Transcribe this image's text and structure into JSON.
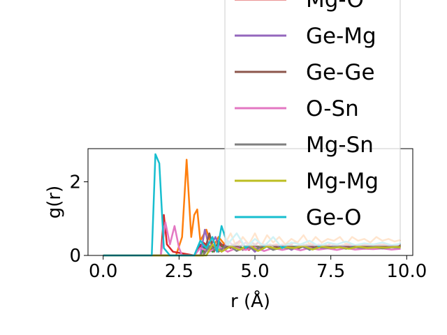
{
  "chart_data": {
    "type": "line",
    "xlabel": "r (Å)",
    "ylabel": "g(r)",
    "xlim": [
      -0.5,
      10.2
    ],
    "ylim": [
      0,
      2.9
    ],
    "xticks": [
      0.0,
      2.5,
      5.0,
      7.5,
      10.0
    ],
    "xtick_labels": [
      "0.0",
      "2.5",
      "5.0",
      "7.5",
      "10.0"
    ],
    "yticks": [
      0,
      2
    ],
    "ytick_labels": [
      "0",
      "2"
    ],
    "grid": false,
    "legend_placement": "upper right, extending above the axes",
    "series": [
      {
        "name": "",
        "color": "#1f77b4",
        "x": [
          0,
          1.8,
          2.0,
          3.0,
          3.2,
          3.4,
          3.6,
          3.8,
          4.0,
          4.2,
          4.4,
          4.6,
          4.8,
          5.0,
          5.2,
          5.4,
          5.6,
          5.8,
          6.0,
          6.2,
          6.4,
          6.6,
          6.8,
          7.0,
          7.2,
          7.4,
          7.6,
          7.8,
          8.0,
          8.2,
          8.4,
          8.6,
          8.8,
          9.0,
          9.2,
          9.4,
          9.6,
          9.8
        ],
        "y": [
          0,
          0,
          0,
          0,
          0.3,
          0.15,
          0.25,
          0.1,
          0.3,
          0.2,
          0.35,
          0.15,
          0.3,
          0.25,
          0.2,
          0.3,
          0.15,
          0.25,
          0.3,
          0.2,
          0.25,
          0.3,
          0.15,
          0.25,
          0.3,
          0.2,
          0.28,
          0.22,
          0.3,
          0.18,
          0.26,
          0.24,
          0.3,
          0.2,
          0.25,
          0.28,
          0.22,
          0.26
        ]
      },
      {
        "name": "",
        "color": "#ff7f0e",
        "x": [
          0,
          2.4,
          2.6,
          2.75,
          2.9,
          3.0,
          3.1,
          3.2,
          3.4,
          3.6,
          3.8,
          4.0,
          4.2,
          4.4,
          4.6,
          4.8,
          5.0,
          5.2,
          5.4,
          5.6,
          5.8,
          6.0,
          6.2,
          6.4,
          6.6,
          6.8,
          7.0,
          7.2,
          7.4,
          7.6,
          7.8,
          8.0,
          8.2,
          8.4,
          8.6,
          8.8,
          9.0,
          9.2,
          9.4,
          9.6,
          9.8
        ],
        "y": [
          0,
          0,
          0.5,
          2.6,
          0.5,
          1.1,
          1.25,
          0.4,
          0.7,
          0.2,
          0.5,
          0.3,
          0.6,
          0.2,
          0.5,
          0.3,
          0.6,
          0.25,
          0.55,
          0.35,
          0.5,
          0.3,
          0.45,
          0.35,
          0.55,
          0.3,
          0.5,
          0.35,
          0.45,
          0.4,
          0.5,
          0.3,
          0.5,
          0.4,
          0.45,
          0.35,
          0.5,
          0.4,
          0.45,
          0.38,
          0.42
        ]
      },
      {
        "name": "",
        "color": "#2ca02c",
        "x": [
          0,
          3.2,
          3.4,
          3.6,
          3.8,
          4.0,
          4.3,
          4.6,
          4.9,
          5.2,
          5.5,
          5.8,
          6.1,
          6.4,
          6.7,
          7.0,
          7.3,
          7.6,
          7.9,
          8.2,
          8.5,
          8.8,
          9.1,
          9.4,
          9.8
        ],
        "y": [
          0,
          0,
          0.3,
          0.1,
          0.35,
          0.15,
          0.3,
          0.2,
          0.35,
          0.15,
          0.3,
          0.2,
          0.32,
          0.18,
          0.28,
          0.22,
          0.3,
          0.2,
          0.27,
          0.23,
          0.3,
          0.2,
          0.26,
          0.24,
          0.25
        ]
      },
      {
        "name": "Mg-O",
        "color": "#d62728",
        "x": [
          0,
          1.9,
          2.0,
          2.1,
          2.3,
          3.0,
          3.3,
          3.6,
          3.9,
          4.2,
          4.5,
          4.8,
          5.1,
          5.4,
          5.7,
          6.0,
          6.3,
          6.6,
          6.9,
          7.2,
          7.5,
          7.8,
          8.1,
          8.4,
          8.7,
          9.0,
          9.3,
          9.6,
          9.8
        ],
        "y": [
          0,
          0,
          1.1,
          0.3,
          0.1,
          0,
          0.35,
          0.15,
          0.3,
          0.2,
          0.4,
          0.15,
          0.35,
          0.25,
          0.3,
          0.2,
          0.35,
          0.25,
          0.3,
          0.2,
          0.32,
          0.26,
          0.3,
          0.24,
          0.3,
          0.28,
          0.3,
          0.27,
          0.3
        ]
      },
      {
        "name": "Ge-Mg",
        "color": "#9467bd",
        "x": [
          0,
          3.2,
          3.35,
          3.5,
          3.7,
          3.9,
          4.1,
          4.4,
          4.7,
          5.0,
          5.3,
          5.6,
          5.9,
          6.2,
          6.5,
          6.8,
          7.1,
          7.4,
          7.7,
          8.0,
          8.3,
          8.6,
          8.9,
          9.2,
          9.5,
          9.8
        ],
        "y": [
          0,
          0,
          0.7,
          0.2,
          0.5,
          0.1,
          0.4,
          0.2,
          0.35,
          0.1,
          0.3,
          0.2,
          0.3,
          0.15,
          0.28,
          0.22,
          0.3,
          0.2,
          0.26,
          0.24,
          0.28,
          0.2,
          0.26,
          0.22,
          0.25,
          0.24
        ]
      },
      {
        "name": "Ge-Ge",
        "color": "#8c564b",
        "x": [
          0,
          3.3,
          3.5,
          3.65,
          3.8,
          4.0,
          4.3,
          4.6,
          4.9,
          5.2,
          5.5,
          5.8,
          6.1,
          6.4,
          6.7,
          7.0,
          7.3,
          7.6,
          7.9,
          8.2,
          8.5,
          8.8,
          9.1,
          9.4,
          9.8
        ],
        "y": [
          0,
          0,
          0.6,
          0.1,
          0.4,
          0.2,
          0.3,
          0.15,
          0.35,
          0.2,
          0.3,
          0.2,
          0.28,
          0.18,
          0.3,
          0.2,
          0.26,
          0.22,
          0.28,
          0.2,
          0.25,
          0.23,
          0.27,
          0.22,
          0.24
        ]
      },
      {
        "name": "O-Sn",
        "color": "#e377c2",
        "x": [
          0,
          1.9,
          2.05,
          2.2,
          2.35,
          2.5,
          2.6,
          3.0,
          3.2,
          3.5,
          3.8,
          4.1,
          4.4,
          4.7,
          5.0,
          5.3,
          5.6,
          5.9,
          6.2,
          6.5,
          6.8,
          7.1,
          7.4,
          7.7,
          8.0,
          8.3,
          8.6,
          8.9,
          9.2,
          9.5,
          9.8
        ],
        "y": [
          0,
          0,
          0.9,
          0.3,
          0.8,
          0.2,
          0,
          0,
          0.2,
          0.1,
          0.25,
          0.1,
          0.2,
          0.15,
          0.22,
          0.12,
          0.2,
          0.15,
          0.2,
          0.14,
          0.2,
          0.16,
          0.19,
          0.15,
          0.2,
          0.16,
          0.18,
          0.17,
          0.19,
          0.16,
          0.18
        ]
      },
      {
        "name": "Mg-Sn",
        "color": "#7f7f7f",
        "x": [
          0,
          3.3,
          3.5,
          3.8,
          4.1,
          4.4,
          4.7,
          5.0,
          5.3,
          5.6,
          5.9,
          6.2,
          6.5,
          6.8,
          7.1,
          7.4,
          7.7,
          8.0,
          8.3,
          8.6,
          8.9,
          9.2,
          9.5,
          9.8
        ],
        "y": [
          0,
          0,
          0.25,
          0.1,
          0.3,
          0.12,
          0.25,
          0.15,
          0.28,
          0.15,
          0.22,
          0.18,
          0.26,
          0.16,
          0.22,
          0.2,
          0.24,
          0.18,
          0.22,
          0.2,
          0.23,
          0.19,
          0.22,
          0.21
        ]
      },
      {
        "name": "Mg-Mg",
        "color": "#bcbd22",
        "x": [
          0,
          3.4,
          3.6,
          3.9,
          4.2,
          4.5,
          4.8,
          5.1,
          5.4,
          5.7,
          6.0,
          6.3,
          6.6,
          6.9,
          7.2,
          7.5,
          7.8,
          8.1,
          8.4,
          8.7,
          9.0,
          9.3,
          9.6,
          9.8
        ],
        "y": [
          0,
          0,
          0.3,
          0.1,
          0.25,
          0.15,
          0.3,
          0.12,
          0.25,
          0.18,
          0.22,
          0.2,
          0.26,
          0.16,
          0.24,
          0.2,
          0.22,
          0.18,
          0.24,
          0.2,
          0.22,
          0.21,
          0.23,
          0.22
        ]
      },
      {
        "name": "Ge-O",
        "color": "#17becf",
        "x": [
          0,
          1.6,
          1.72,
          1.85,
          2.0,
          2.2,
          3.0,
          3.2,
          3.4,
          3.6,
          3.75,
          3.9,
          4.1,
          4.4,
          4.7,
          5.0,
          5.3,
          5.6,
          5.9,
          6.2,
          6.5,
          6.8,
          7.1,
          7.4,
          7.7,
          8.0,
          8.3,
          8.6,
          8.9,
          9.2,
          9.5,
          9.8
        ],
        "y": [
          0,
          0,
          2.75,
          2.5,
          0.2,
          0,
          0,
          0.4,
          0.2,
          0.5,
          0.1,
          0.8,
          0.3,
          0.6,
          0.2,
          0.45,
          0.25,
          0.5,
          0.2,
          0.35,
          0.3,
          0.4,
          0.25,
          0.35,
          0.3,
          0.38,
          0.28,
          0.33,
          0.3,
          0.35,
          0.28,
          0.32
        ]
      }
    ]
  }
}
